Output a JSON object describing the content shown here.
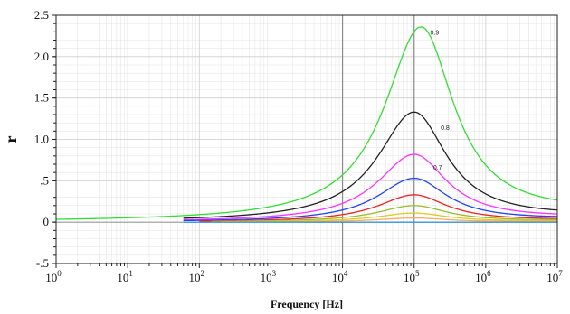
{
  "chart_data": {
    "type": "line",
    "title": "",
    "xlabel": "Frequency [Hz]",
    "ylabel": "r",
    "xscale": "log",
    "xlim": [
      1,
      10000000
    ],
    "ylim": [
      -0.5,
      2.5
    ],
    "grid": true,
    "x_ticks": [
      {
        "base": "10",
        "exp": "0"
      },
      {
        "base": "10",
        "exp": "1"
      },
      {
        "base": "10",
        "exp": "2"
      },
      {
        "base": "10",
        "exp": "3"
      },
      {
        "base": "10",
        "exp": "4"
      },
      {
        "base": "10",
        "exp": "5"
      },
      {
        "base": "10",
        "exp": "6"
      },
      {
        "base": "10",
        "exp": "7"
      }
    ],
    "y_ticks": [
      "2.5",
      "2.0",
      "1.5",
      "1.0",
      ".5",
      "0",
      "-.5"
    ],
    "annotations": [
      {
        "text": "0.9",
        "x": 200000,
        "y": 2.3
      },
      {
        "text": "0.8",
        "x": 280000,
        "y": 1.15
      },
      {
        "text": "0.7",
        "x": 220000,
        "y": 0.67
      }
    ],
    "series": [
      {
        "peak_x": 125000,
        "peak_y": 2.36,
        "color": "#33dd33",
        "x_start": 1,
        "end_y": 0.08
      },
      {
        "peak_x": 100000,
        "peak_y": 1.33,
        "color": "#222222",
        "x_start": 60,
        "end_y": 0.05
      },
      {
        "peak_x": 100000,
        "peak_y": 0.82,
        "color": "#ff33ff",
        "x_start": 60,
        "end_y": 0.04
      },
      {
        "peak_x": 100000,
        "peak_y": 0.53,
        "color": "#2244ee",
        "x_start": 60,
        "end_y": 0.03
      },
      {
        "peak_x": 100000,
        "peak_y": 0.33,
        "color": "#ee2222",
        "x_start": 100,
        "end_y": 0.02
      },
      {
        "peak_x": 100000,
        "peak_y": 0.2,
        "color": "#99bb33",
        "x_start": 150,
        "end_y": 0.015
      },
      {
        "peak_x": 100000,
        "peak_y": 0.11,
        "color": "#ddcc22",
        "x_start": 200,
        "end_y": 0.01
      },
      {
        "peak_x": 100000,
        "peak_y": 0.05,
        "color": "#ffaa66",
        "x_start": 300,
        "end_y": 0.005
      },
      {
        "peak_x": 100000,
        "peak_y": 0.0,
        "color": "#3399dd",
        "x_start": 60,
        "end_y": 0.0
      }
    ]
  }
}
